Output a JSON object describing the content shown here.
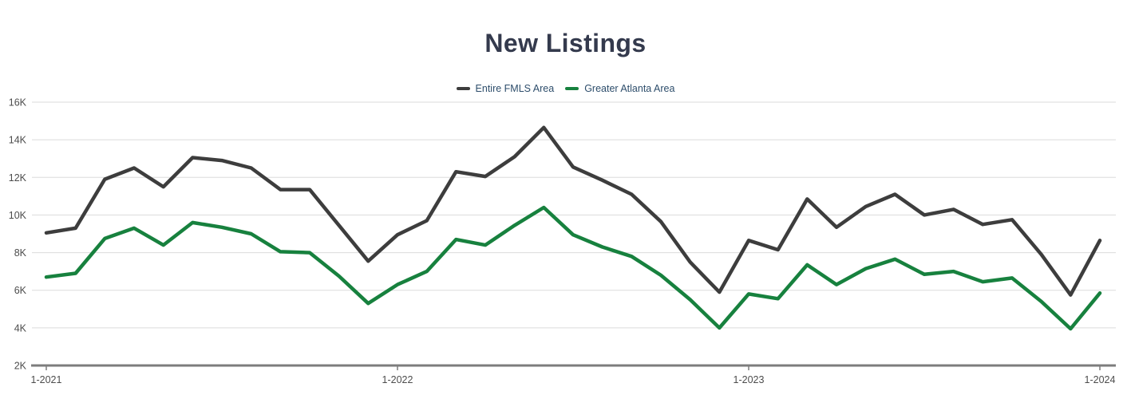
{
  "title": "New Listings",
  "legend": [
    {
      "label": "Entire FMLS Area",
      "color": "#3d3d3d"
    },
    {
      "label": "Greater Atlanta Area",
      "color": "#17813e"
    }
  ],
  "colors": {
    "title_text": "#343a4d",
    "legend_text": "#2d4d6b",
    "axis_text": "#4c4c4c",
    "grid_line": "#dbdbdb",
    "axis_line": "#7d7d7d",
    "entire_fmls_line": "#3d3d3d",
    "greater_atlanta_line": "#17813e"
  },
  "chart_data": {
    "type": "line",
    "title": "New Listings",
    "xlabel": "",
    "ylabel": "",
    "grid": "horizontal",
    "legend_position": "top-center",
    "ylim": [
      2000,
      16000
    ],
    "y_ticks": [
      {
        "value": 2000,
        "label": "2K"
      },
      {
        "value": 4000,
        "label": "4K"
      },
      {
        "value": 6000,
        "label": "6K"
      },
      {
        "value": 8000,
        "label": "8K"
      },
      {
        "value": 10000,
        "label": "10K"
      },
      {
        "value": 12000,
        "label": "12K"
      },
      {
        "value": 14000,
        "label": "14K"
      },
      {
        "value": 16000,
        "label": "16K"
      }
    ],
    "x": [
      "1-2021",
      "2-2021",
      "3-2021",
      "4-2021",
      "5-2021",
      "6-2021",
      "7-2021",
      "8-2021",
      "9-2021",
      "10-2021",
      "11-2021",
      "12-2021",
      "1-2022",
      "2-2022",
      "3-2022",
      "4-2022",
      "5-2022",
      "6-2022",
      "7-2022",
      "8-2022",
      "9-2022",
      "10-2022",
      "11-2022",
      "12-2022",
      "1-2023",
      "2-2023",
      "3-2023",
      "4-2023",
      "5-2023",
      "6-2023",
      "7-2023",
      "8-2023",
      "9-2023",
      "10-2023",
      "11-2023",
      "12-2023",
      "1-2024"
    ],
    "x_ticks": [
      {
        "index": 0,
        "label": "1-2021"
      },
      {
        "index": 12,
        "label": "1-2022"
      },
      {
        "index": 24,
        "label": "1-2023"
      },
      {
        "index": 36,
        "label": "1-2024"
      }
    ],
    "series": [
      {
        "name": "Entire FMLS Area",
        "color": "#3d3d3d",
        "values": [
          9050,
          9300,
          11900,
          12500,
          11500,
          13050,
          12900,
          12500,
          11350,
          11350,
          9450,
          7550,
          8950,
          9700,
          12300,
          12050,
          13100,
          14650,
          12550,
          11850,
          11100,
          9650,
          7500,
          5900,
          8650,
          8150,
          10850,
          9350,
          10450,
          11100,
          10000,
          10300,
          9500,
          9750,
          7900,
          5750,
          8650
        ]
      },
      {
        "name": "Greater Atlanta Area",
        "color": "#17813e",
        "values": [
          6700,
          6900,
          8750,
          9300,
          8400,
          9600,
          9350,
          9000,
          8050,
          8000,
          6750,
          5300,
          6300,
          7000,
          8700,
          8400,
          9450,
          10400,
          8950,
          8300,
          7800,
          6800,
          5500,
          4000,
          5800,
          5550,
          7350,
          6300,
          7150,
          7650,
          6850,
          7000,
          6450,
          6650,
          5400,
          3950,
          5850
        ]
      }
    ]
  }
}
